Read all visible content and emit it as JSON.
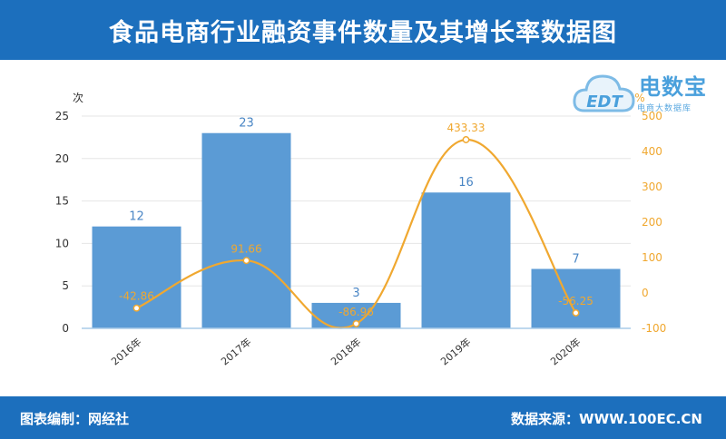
{
  "header": {
    "title": "食品电商行业融资事件数量及其增长率数据图"
  },
  "footer": {
    "left": "图表编制：网经社",
    "right": "数据来源：WWW.100EC.CN"
  },
  "logo": {
    "name": "电数宝",
    "sub": "电商大数据库",
    "mark": "EDT"
  },
  "chart_data": {
    "type": "bar",
    "categories": [
      "2016年",
      "2017年",
      "2018年",
      "2019年",
      "2020年"
    ],
    "series": [
      {
        "values": [
          12,
          23,
          3,
          16,
          7
        ],
        "color": "#5b9bd5",
        "axis": "left",
        "kind": "bar"
      },
      {
        "values": [
          -42.86,
          91.66,
          -86.96,
          433.33,
          -56.25
        ],
        "color": "#f0a830",
        "axis": "right",
        "kind": "line"
      }
    ],
    "y_left": {
      "label": "次",
      "min": 0,
      "max": 25,
      "ticks": [
        0,
        5,
        10,
        15,
        20,
        25
      ]
    },
    "y_right": {
      "label": "%",
      "min": -100,
      "max": 500,
      "ticks": [
        -100,
        0,
        100,
        200,
        300,
        400,
        500
      ]
    },
    "grid": true,
    "legend": "none"
  }
}
